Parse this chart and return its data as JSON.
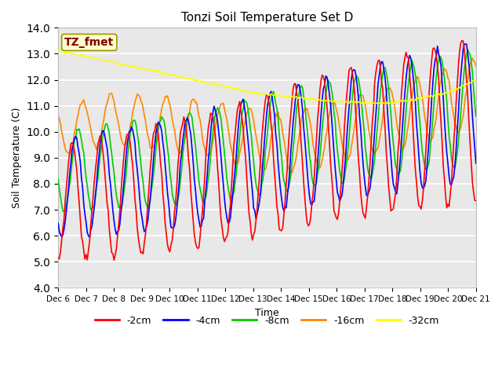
{
  "title": "Tonzi Soil Temperature Set D",
  "xlabel": "Time",
  "ylabel": "Soil Temperature (C)",
  "ylim": [
    4.0,
    14.0
  ],
  "yticks": [
    4.0,
    5.0,
    6.0,
    7.0,
    8.0,
    9.0,
    10.0,
    11.0,
    12.0,
    13.0,
    14.0
  ],
  "date_labels": [
    "Dec 6",
    "Dec 7",
    "Dec 8",
    "Dec 9",
    "Dec 10",
    "Dec 11",
    "Dec 12",
    "Dec 13",
    "Dec 14",
    "Dec 15",
    "Dec 16",
    "Dec 17",
    "Dec 18",
    "Dec 19",
    "Dec 20",
    "Dec 21"
  ],
  "series_labels": [
    "-2cm",
    "-4cm",
    "-8cm",
    "-16cm",
    "-32cm"
  ],
  "series_colors": [
    "#ff0000",
    "#0000ff",
    "#00cc00",
    "#ff8800",
    "#ffff00"
  ],
  "annotation_text": "TZ_fmet",
  "annotation_color": "#800000",
  "annotation_bg": "#ffffcc",
  "fig_bg": "#ffffff",
  "plot_bg": "#e8e8e8",
  "grid_color": "#ffffff",
  "linewidth": 1.2,
  "figsize": [
    6.4,
    4.8
  ],
  "dpi": 100
}
